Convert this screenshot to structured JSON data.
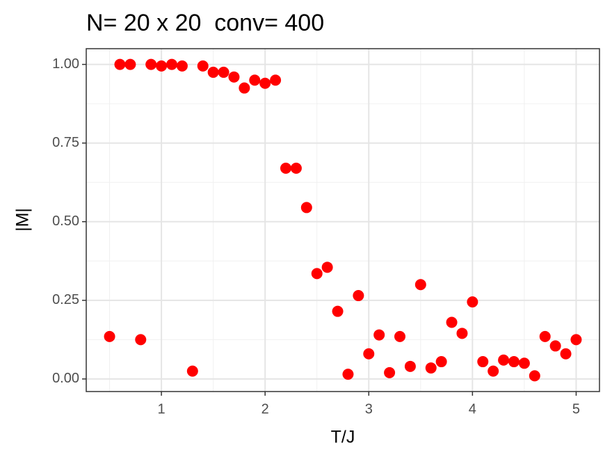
{
  "chart_data": {
    "type": "scatter",
    "title": "N= 20 x 20  conv= 400",
    "x_label": "T/J",
    "y_label": "|M|",
    "x": [
      0.5,
      0.6,
      0.7,
      0.8,
      0.9,
      1.0,
      1.1,
      1.2,
      1.3,
      1.4,
      1.5,
      1.6,
      1.7,
      1.8,
      1.9,
      2.0,
      2.1,
      2.2,
      2.3,
      2.4,
      2.5,
      2.6,
      2.7,
      2.8,
      2.9,
      3.0,
      3.1,
      3.2,
      3.3,
      3.4,
      3.5,
      3.6,
      3.7,
      3.8,
      3.9,
      4.0,
      4.1,
      4.2,
      4.3,
      4.4,
      4.5,
      4.6,
      4.7,
      4.8,
      4.9,
      5.0
    ],
    "values": [
      0.135,
      1.0,
      1.0,
      0.125,
      1.0,
      0.995,
      1.0,
      0.995,
      0.025,
      0.995,
      0.975,
      0.975,
      0.96,
      0.925,
      0.95,
      0.94,
      0.95,
      0.67,
      0.67,
      0.545,
      0.335,
      0.355,
      0.215,
      0.015,
      0.265,
      0.08,
      0.14,
      0.02,
      0.135,
      0.04,
      0.3,
      0.035,
      0.055,
      0.18,
      0.145,
      0.245,
      0.055,
      0.025,
      0.06,
      0.055,
      0.05,
      0.01,
      0.135,
      0.105,
      0.08,
      0.125
    ],
    "color": "#ff0000",
    "xlim": [
      0.275,
      5.225
    ],
    "xticks": [
      1,
      2,
      3,
      4,
      5
    ],
    "ylim": [
      -0.04,
      1.05
    ],
    "yticks": [
      {
        "value": 0,
        "label": "0.00"
      },
      {
        "value": 0.25,
        "label": "0.25"
      },
      {
        "value": 0.5,
        "label": "0.50"
      },
      {
        "value": 0.75,
        "label": "0.75"
      },
      {
        "value": 1,
        "label": "1.00"
      }
    ],
    "grid": true
  }
}
